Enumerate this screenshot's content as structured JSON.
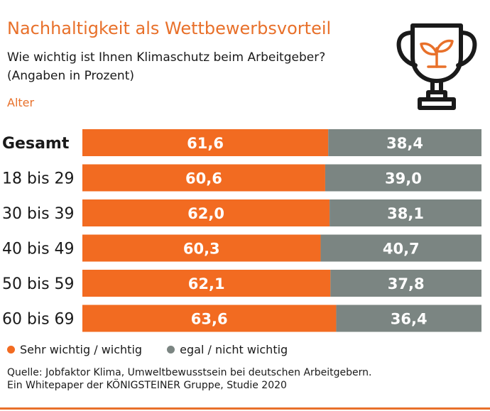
{
  "header": {
    "title": "Nachhaltigkeit als Wettbewerbsvorteil",
    "subtitle_line1": "Wie wichtig ist Ihnen Klimaschutz beim Arbeitgeber?",
    "subtitle_line2": "(Angaben in Prozent)",
    "group_label": "Alter",
    "icon": "trophy-sprout-icon"
  },
  "colors": {
    "accent": "#e8702a",
    "series1": "#f26b21",
    "series2": "#7b8582"
  },
  "chart_data": {
    "type": "bar",
    "orientation": "horizontal",
    "stacked": true,
    "categories": [
      "Gesamt",
      "18 bis 29",
      "30 bis 39",
      "40 bis 49",
      "50 bis 59",
      "60 bis 69"
    ],
    "series": [
      {
        "name": "Sehr wichtig / wichtig",
        "values": [
          61.6,
          60.6,
          62.0,
          60.3,
          62.1,
          63.6
        ],
        "labels": [
          "61,6",
          "60,6",
          "62,0",
          "60,3",
          "62,1",
          "63,6"
        ]
      },
      {
        "name": "egal / nicht wichtig",
        "values": [
          38.4,
          39.0,
          38.1,
          40.7,
          37.8,
          36.4
        ],
        "labels": [
          "38,4",
          "39,0",
          "38,1",
          "40,7",
          "37,8",
          "36,4"
        ]
      }
    ],
    "legend_position": "bottom-left",
    "grid": false
  },
  "legend": {
    "item1": "Sehr wichtig / wichtig",
    "item2": "egal / nicht wichtig"
  },
  "source": {
    "line1": "Quelle:  Jobfaktor Klima, Umweltbewusstsein bei deutschen Arbeitgebern.",
    "line2": "Ein Whitepaper der KÖNIGSTEINER Gruppe, Studie 2020"
  }
}
